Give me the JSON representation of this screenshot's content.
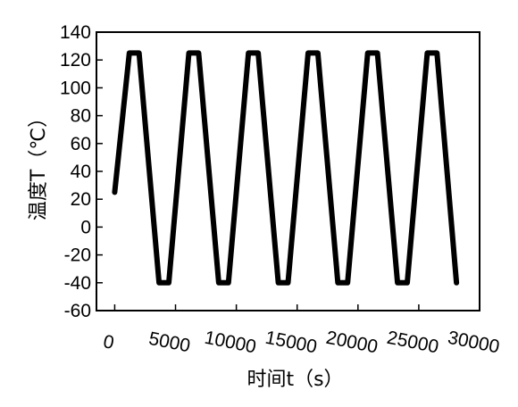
{
  "chart_data": {
    "type": "line",
    "title": "",
    "xlabel": "时间t（s）",
    "ylabel": "温度T（℃）",
    "xlim": [
      -1500,
      30000
    ],
    "ylim": [
      -60,
      140
    ],
    "xticks": [
      0,
      5000,
      10000,
      15000,
      20000,
      25000,
      30000
    ],
    "xtick_labels": [
      "0",
      "5000",
      "10000",
      "15000",
      "20000",
      "25000",
      "30000"
    ],
    "yticks": [
      -60,
      -40,
      -20,
      0,
      20,
      40,
      60,
      80,
      100,
      120,
      140
    ],
    "ytick_labels": [
      "-60",
      "-40",
      "-20",
      "0",
      "20",
      "40",
      "60",
      "80",
      "100",
      "120",
      "140"
    ],
    "grid": false,
    "legend": "none",
    "series": [
      {
        "color": "#000000",
        "x": [
          0,
          1200,
          2000,
          3650,
          4450,
          6100,
          6900,
          8550,
          9350,
          11000,
          11800,
          13450,
          14250,
          15900,
          16700,
          18350,
          19150,
          20800,
          21600,
          23250,
          24050,
          25700,
          26500,
          28100
        ],
        "y": [
          25,
          125,
          125,
          -40,
          -40,
          125,
          125,
          -40,
          -40,
          125,
          125,
          -40,
          -40,
          125,
          125,
          -40,
          -40,
          125,
          125,
          -40,
          -40,
          125,
          125,
          -40
        ]
      }
    ]
  }
}
